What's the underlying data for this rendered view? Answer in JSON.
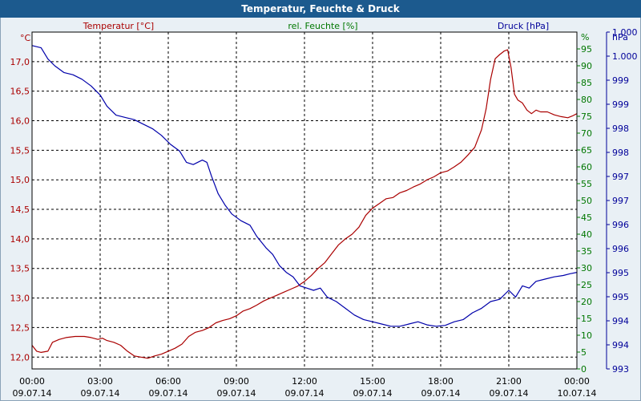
{
  "chart_data": {
    "type": "line",
    "title": "Temperatur, Feuchte & Druck",
    "x_ticks": [
      {
        "time": "00:00",
        "date": "09.07.14"
      },
      {
        "time": "03:00",
        "date": "09.07.14"
      },
      {
        "time": "06:00",
        "date": "09.07.14"
      },
      {
        "time": "09:00",
        "date": "09.07.14"
      },
      {
        "time": "12:00",
        "date": "09.07.14"
      },
      {
        "time": "15:00",
        "date": "09.07.14"
      },
      {
        "time": "18:00",
        "date": "09.07.14"
      },
      {
        "time": "21:00",
        "date": "09.07.14"
      },
      {
        "time": "00:00",
        "date": "10.07.14"
      }
    ],
    "x_range_hours": [
      0,
      24
    ],
    "grid": true,
    "axes": {
      "temperature": {
        "label": "Temperatur [°C]",
        "unit": "°C",
        "color": "#aa0000",
        "side": "left",
        "range": [
          11.8,
          17.5
        ],
        "ticks": [
          "12,0",
          "12,5",
          "13,0",
          "13,5",
          "14,0",
          "14,5",
          "15,0",
          "15,5",
          "16,0",
          "16,5",
          "17,0"
        ]
      },
      "humidity": {
        "label": "rel. Feuchte [%]",
        "unit": "%",
        "color": "#007700",
        "side": "right",
        "range": [
          0,
          100
        ],
        "ticks": [
          "0",
          "5",
          "10",
          "15",
          "20",
          "25",
          "30",
          "35",
          "40",
          "45",
          "50",
          "55",
          "60",
          "65",
          "70",
          "75",
          "80",
          "85",
          "90",
          "95"
        ]
      },
      "pressure": {
        "label": "Druck [hPa]",
        "unit": "hPa",
        "color": "#000099",
        "side": "right",
        "range": [
          993,
          1000.5
        ],
        "ticks": [
          "993",
          "994",
          "994",
          "995",
          "995",
          "996",
          "996",
          "997",
          "997",
          "998",
          "998",
          "999",
          "999",
          "1.000",
          "1.000"
        ]
      }
    },
    "series": [
      {
        "name": "Temperatur [°C]",
        "axis": "temperature",
        "color": "#aa0000",
        "points": [
          [
            0,
            12.2
          ],
          [
            0.2,
            12.1
          ],
          [
            0.4,
            12.08
          ],
          [
            0.7,
            12.1
          ],
          [
            0.9,
            12.25
          ],
          [
            1.2,
            12.3
          ],
          [
            1.5,
            12.33
          ],
          [
            1.9,
            12.35
          ],
          [
            2.3,
            12.35
          ],
          [
            2.6,
            12.33
          ],
          [
            2.9,
            12.3
          ],
          [
            3.1,
            12.32
          ],
          [
            3.3,
            12.28
          ],
          [
            3.6,
            12.25
          ],
          [
            3.9,
            12.2
          ],
          [
            4.2,
            12.1
          ],
          [
            4.5,
            12.02
          ],
          [
            4.8,
            12.0
          ],
          [
            5.1,
            11.98
          ],
          [
            5.4,
            12.02
          ],
          [
            5.7,
            12.05
          ],
          [
            6.0,
            12.1
          ],
          [
            6.3,
            12.15
          ],
          [
            6.6,
            12.22
          ],
          [
            6.9,
            12.35
          ],
          [
            7.2,
            12.42
          ],
          [
            7.5,
            12.45
          ],
          [
            7.8,
            12.5
          ],
          [
            8.1,
            12.58
          ],
          [
            8.4,
            12.62
          ],
          [
            8.7,
            12.65
          ],
          [
            9.0,
            12.7
          ],
          [
            9.3,
            12.78
          ],
          [
            9.6,
            12.82
          ],
          [
            9.9,
            12.88
          ],
          [
            10.2,
            12.95
          ],
          [
            10.5,
            13.0
          ],
          [
            10.8,
            13.05
          ],
          [
            11.1,
            13.1
          ],
          [
            11.4,
            13.15
          ],
          [
            11.7,
            13.2
          ],
          [
            12.0,
            13.28
          ],
          [
            12.3,
            13.38
          ],
          [
            12.6,
            13.5
          ],
          [
            12.9,
            13.6
          ],
          [
            13.2,
            13.75
          ],
          [
            13.5,
            13.9
          ],
          [
            13.8,
            14.0
          ],
          [
            14.1,
            14.08
          ],
          [
            14.4,
            14.2
          ],
          [
            14.7,
            14.4
          ],
          [
            15.0,
            14.52
          ],
          [
            15.3,
            14.6
          ],
          [
            15.6,
            14.68
          ],
          [
            15.9,
            14.7
          ],
          [
            16.2,
            14.78
          ],
          [
            16.5,
            14.82
          ],
          [
            16.8,
            14.88
          ],
          [
            17.1,
            14.93
          ],
          [
            17.4,
            15.0
          ],
          [
            17.7,
            15.05
          ],
          [
            18.0,
            15.12
          ],
          [
            18.3,
            15.15
          ],
          [
            18.6,
            15.22
          ],
          [
            18.9,
            15.3
          ],
          [
            19.2,
            15.42
          ],
          [
            19.5,
            15.55
          ],
          [
            19.8,
            15.85
          ],
          [
            20.0,
            16.2
          ],
          [
            20.2,
            16.7
          ],
          [
            20.4,
            17.05
          ],
          [
            20.6,
            17.12
          ],
          [
            20.8,
            17.18
          ],
          [
            20.95,
            17.2
          ],
          [
            21.1,
            16.9
          ],
          [
            21.25,
            16.45
          ],
          [
            21.4,
            16.35
          ],
          [
            21.6,
            16.3
          ],
          [
            21.8,
            16.18
          ],
          [
            22.0,
            16.12
          ],
          [
            22.2,
            16.18
          ],
          [
            22.4,
            16.15
          ],
          [
            22.7,
            16.15
          ],
          [
            23.0,
            16.1
          ],
          [
            23.3,
            16.07
          ],
          [
            23.6,
            16.05
          ],
          [
            23.8,
            16.08
          ],
          [
            24.0,
            16.12
          ]
        ]
      },
      {
        "name": "Druck [hPa]",
        "axis": "pressure",
        "color": "#0000aa",
        "points": [
          [
            0,
            1000.2
          ],
          [
            0.4,
            1000.15
          ],
          [
            0.7,
            999.9
          ],
          [
            1.0,
            999.75
          ],
          [
            1.4,
            999.6
          ],
          [
            1.8,
            999.55
          ],
          [
            2.2,
            999.45
          ],
          [
            2.6,
            999.3
          ],
          [
            3.0,
            999.1
          ],
          [
            3.3,
            998.85
          ],
          [
            3.7,
            998.65
          ],
          [
            4.1,
            998.6
          ],
          [
            4.5,
            998.55
          ],
          [
            4.9,
            998.45
          ],
          [
            5.3,
            998.35
          ],
          [
            5.7,
            998.2
          ],
          [
            6.1,
            998.0
          ],
          [
            6.5,
            997.85
          ],
          [
            6.8,
            997.6
          ],
          [
            7.1,
            997.55
          ],
          [
            7.5,
            997.65
          ],
          [
            7.7,
            997.6
          ],
          [
            7.9,
            997.3
          ],
          [
            8.2,
            996.9
          ],
          [
            8.5,
            996.65
          ],
          [
            8.8,
            996.45
          ],
          [
            9.2,
            996.3
          ],
          [
            9.6,
            996.2
          ],
          [
            9.9,
            995.95
          ],
          [
            10.3,
            995.7
          ],
          [
            10.6,
            995.55
          ],
          [
            10.9,
            995.3
          ],
          [
            11.2,
            995.15
          ],
          [
            11.5,
            995.05
          ],
          [
            11.8,
            994.85
          ],
          [
            12.1,
            994.8
          ],
          [
            12.4,
            994.75
          ],
          [
            12.7,
            994.8
          ],
          [
            13.0,
            994.6
          ],
          [
            13.4,
            994.5
          ],
          [
            13.8,
            994.35
          ],
          [
            14.2,
            994.2
          ],
          [
            14.6,
            994.1
          ],
          [
            15.0,
            994.05
          ],
          [
            15.4,
            994.0
          ],
          [
            15.8,
            993.95
          ],
          [
            16.2,
            993.95
          ],
          [
            16.6,
            994.0
          ],
          [
            17.0,
            994.05
          ],
          [
            17.4,
            993.98
          ],
          [
            17.8,
            993.95
          ],
          [
            18.2,
            993.97
          ],
          [
            18.6,
            994.05
          ],
          [
            19.0,
            994.1
          ],
          [
            19.4,
            994.25
          ],
          [
            19.8,
            994.35
          ],
          [
            20.2,
            994.5
          ],
          [
            20.6,
            994.55
          ],
          [
            21.0,
            994.75
          ],
          [
            21.3,
            994.6
          ],
          [
            21.6,
            994.85
          ],
          [
            21.9,
            994.8
          ],
          [
            22.2,
            994.95
          ],
          [
            22.6,
            995.0
          ],
          [
            23.0,
            995.05
          ],
          [
            23.4,
            995.08
          ],
          [
            23.7,
            995.12
          ],
          [
            24.0,
            995.15
          ]
        ]
      }
    ]
  }
}
